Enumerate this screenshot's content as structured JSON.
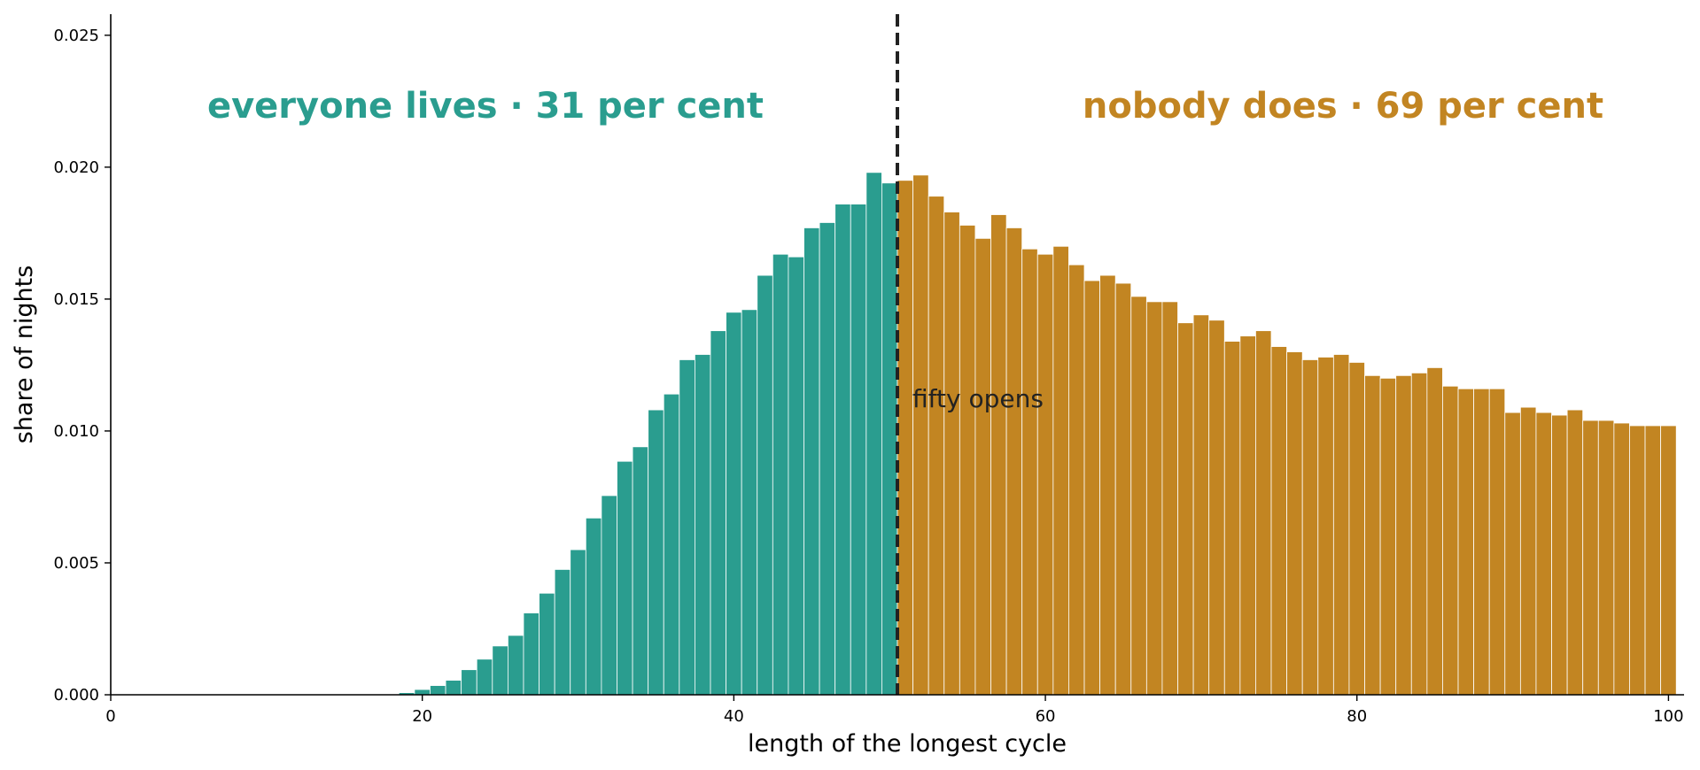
{
  "chart_data": {
    "type": "bar",
    "xlabel": "length of the longest cycle",
    "ylabel": "share of nights",
    "xlim": [
      0,
      101
    ],
    "ylim": [
      0,
      0.0258
    ],
    "xticks": [
      0,
      20,
      40,
      60,
      80,
      100
    ],
    "yticks": [
      0.0,
      0.005,
      0.01,
      0.015,
      0.02,
      0.025
    ],
    "ytick_labels": [
      "0.000",
      "0.005",
      "0.010",
      "0.015",
      "0.020",
      "0.025"
    ],
    "xtick_labels": [
      "0",
      "20",
      "40",
      "60",
      "80",
      "100"
    ],
    "threshold": 50.5,
    "threshold_label": "fifty opens",
    "left_label": "everyone lives · 31 per cent",
    "right_label": "nobody does · 69 per cent",
    "colors": {
      "left": "#2a9d8f",
      "right": "#c28522",
      "threshold": "#222222",
      "axis": "#000000"
    },
    "bins_start": 1,
    "bin_width": 1,
    "values": [
      0,
      0,
      0,
      0,
      0,
      0,
      0,
      0,
      0,
      0,
      0,
      0,
      0,
      0,
      0,
      0,
      0,
      2e-05,
      8e-05,
      0.0002,
      0.00035,
      0.00055,
      0.00095,
      0.00135,
      0.00185,
      0.00225,
      0.0031,
      0.00385,
      0.00475,
      0.0055,
      0.0067,
      0.00755,
      0.00885,
      0.0094,
      0.0108,
      0.0114,
      0.0127,
      0.0129,
      0.0138,
      0.0145,
      0.0146,
      0.0159,
      0.0167,
      0.0166,
      0.0177,
      0.0179,
      0.0186,
      0.0186,
      0.0198,
      0.0194,
      0.0195,
      0.0197,
      0.0189,
      0.0183,
      0.0178,
      0.0173,
      0.0182,
      0.0177,
      0.0169,
      0.0167,
      0.017,
      0.0163,
      0.0157,
      0.0159,
      0.0156,
      0.0151,
      0.0149,
      0.0149,
      0.0141,
      0.0144,
      0.0142,
      0.0134,
      0.0136,
      0.0138,
      0.0132,
      0.013,
      0.0127,
      0.0128,
      0.0129,
      0.0126,
      0.0121,
      0.012,
      0.0121,
      0.0122,
      0.0124,
      0.0117,
      0.0116,
      0.0116,
      0.0116,
      0.0107,
      0.0109,
      0.0107,
      0.0106,
      0.0108,
      0.0104,
      0.0104,
      0.0103,
      0.0102,
      0.0102,
      0.0102
    ]
  }
}
